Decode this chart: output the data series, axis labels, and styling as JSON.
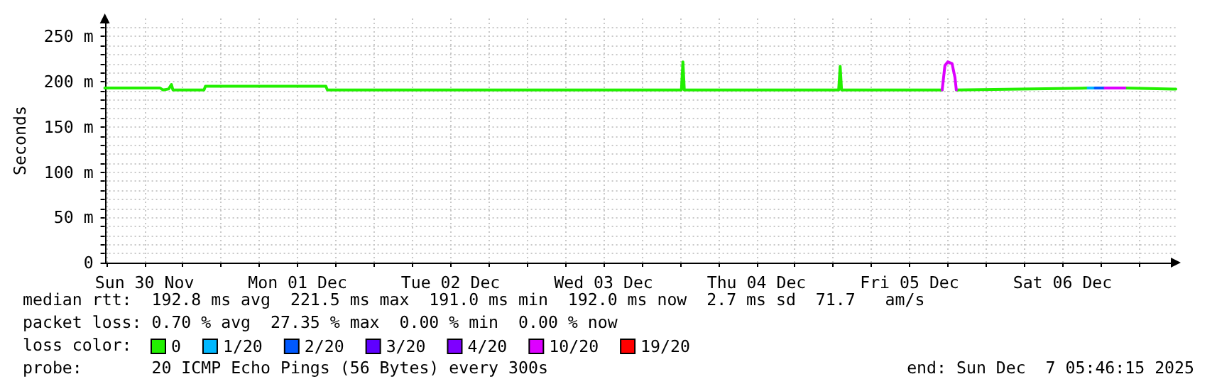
{
  "chart_data": {
    "type": "line",
    "ylabel": "Seconds",
    "legend_title": "loss color:",
    "legend": "bottom",
    "grid": true,
    "marker": "none",
    "line_style": "solid",
    "xlim": [
      "2025-11-30T05:46",
      "2025-12-07T05:46"
    ],
    "xticks": [
      {
        "value": "2025-11-30T06:00",
        "label": null
      },
      {
        "value": "2025-11-30T12:00",
        "label": "Sun 30 Nov"
      },
      {
        "value": "2025-11-30T18:00",
        "label": null
      },
      {
        "value": "2025-12-01T00:00",
        "label": null
      },
      {
        "value": "2025-12-01T06:00",
        "label": null
      },
      {
        "value": "2025-12-01T12:00",
        "label": "Mon 01 Dec"
      },
      {
        "value": "2025-12-01T18:00",
        "label": null
      },
      {
        "value": "2025-12-02T00:00",
        "label": null
      },
      {
        "value": "2025-12-02T06:00",
        "label": null
      },
      {
        "value": "2025-12-02T12:00",
        "label": "Tue 02 Dec"
      },
      {
        "value": "2025-12-02T18:00",
        "label": null
      },
      {
        "value": "2025-12-03T00:00",
        "label": null
      },
      {
        "value": "2025-12-03T06:00",
        "label": null
      },
      {
        "value": "2025-12-03T12:00",
        "label": "Wed 03 Dec"
      },
      {
        "value": "2025-12-03T18:00",
        "label": null
      },
      {
        "value": "2025-12-04T00:00",
        "label": null
      },
      {
        "value": "2025-12-04T06:00",
        "label": null
      },
      {
        "value": "2025-12-04T12:00",
        "label": "Thu 04 Dec"
      },
      {
        "value": "2025-12-04T18:00",
        "label": null
      },
      {
        "value": "2025-12-05T00:00",
        "label": null
      },
      {
        "value": "2025-12-05T06:00",
        "label": null
      },
      {
        "value": "2025-12-05T12:00",
        "label": "Fri 05 Dec"
      },
      {
        "value": "2025-12-05T18:00",
        "label": null
      },
      {
        "value": "2025-12-06T00:00",
        "label": null
      },
      {
        "value": "2025-12-06T06:00",
        "label": null
      },
      {
        "value": "2025-12-06T12:00",
        "label": "Sat 06 Dec"
      },
      {
        "value": "2025-12-06T18:00",
        "label": null
      },
      {
        "value": "2025-12-07T00:00",
        "label": null
      }
    ],
    "ylim": [
      0,
      270
    ],
    "yticks": [
      0,
      {
        "value": 10,
        "label": null
      },
      {
        "value": 20,
        "label": null
      },
      {
        "value": 30,
        "label": null
      },
      {
        "value": 40,
        "label": null
      },
      {
        "value": 50,
        "label": "50 m"
      },
      {
        "value": 60,
        "label": null
      },
      {
        "value": 70,
        "label": null
      },
      {
        "value": 80,
        "label": null
      },
      {
        "value": 90,
        "label": null
      },
      {
        "value": 100,
        "label": "100 m"
      },
      {
        "value": 110,
        "label": null
      },
      {
        "value": 120,
        "label": null
      },
      {
        "value": 130,
        "label": null
      },
      {
        "value": 140,
        "label": null
      },
      {
        "value": 150,
        "label": "150 m"
      },
      {
        "value": 160,
        "label": null
      },
      {
        "value": 170,
        "label": null
      },
      {
        "value": 180,
        "label": null
      },
      {
        "value": 190,
        "label": null
      },
      {
        "value": 200,
        "label": "200 m"
      },
      {
        "value": 210,
        "label": null
      },
      {
        "value": 220,
        "label": null
      },
      {
        "value": 230,
        "label": null
      },
      {
        "value": 240,
        "label": null
      },
      {
        "value": 250,
        "label": "250 m"
      },
      {
        "value": 260,
        "label": null
      }
    ],
    "series": [
      {
        "name": "0",
        "color": "#22f000",
        "x": [
          "2025-11-30T05:46",
          "2025-11-30T14:27",
          "2025-11-30T14:53",
          "2025-11-30T15:47",
          "2025-11-30T16:13",
          "2025-11-30T16:27",
          "2025-11-30T21:20",
          "2025-11-30T21:33",
          "2025-12-01T16:27",
          "2025-12-01T16:40",
          "2025-12-04T00:13",
          "2025-12-04T00:27",
          "2025-12-04T00:40",
          "2025-12-05T00:53",
          "2025-12-05T01:07",
          "2025-12-05T01:20",
          "2025-12-05T17:07",
          "2025-12-05T18:10",
          "2025-12-05T19:20",
          "2025-12-06T16:00",
          "2025-12-06T18:00",
          "2025-12-06T21:47",
          "2025-12-07T05:20",
          "2025-12-07T05:46"
        ],
        "values": [
          193,
          193,
          191,
          192,
          197,
          191,
          191,
          195,
          195,
          191,
          191,
          222,
          191,
          191,
          217,
          191,
          191,
          null,
          191,
          193,
          null,
          193,
          192,
          192
        ]
      },
      {
        "name": "1/20",
        "color": "#00b8ff",
        "x": [
          "2025-12-06T16:00",
          "2025-12-06T17:07"
        ],
        "values": [
          193,
          193
        ]
      },
      {
        "name": "2/20",
        "color": "#0059ff",
        "x": [
          "2025-12-06T17:07",
          "2025-12-06T18:40"
        ],
        "values": [
          193,
          193
        ]
      },
      {
        "name": "3/20",
        "color": "#5e00ff"
      },
      {
        "name": "4/20",
        "color": "#7e00ff"
      },
      {
        "name": "10/20",
        "color": "#dd00ff",
        "x": [
          "2025-12-05T17:07",
          "2025-12-05T17:33",
          "2025-12-05T18:00",
          "2025-12-05T18:40",
          "2025-12-05T19:07",
          "2025-12-05T19:20",
          "2025-12-06T06:00",
          "2025-12-06T18:40",
          "2025-12-06T21:47"
        ],
        "values": [
          191,
          218,
          222,
          220,
          205,
          191,
          null,
          193,
          193
        ]
      },
      {
        "name": "19/20",
        "color": "#ff0000"
      }
    ],
    "annotations": [
      "median rtt:  192.8 ms avg  221.5 ms max  191.0 ms min  192.0 ms now  2.7 ms sd  71.7   am/s",
      "packet loss: 0.70 % avg  27.35 % max  0.00 % min  0.00 % now",
      "probe:       20 ICMP Echo Pings (56 Bytes) every 300s",
      "end: Sun Dec  7 05:46:15 2025"
    ]
  }
}
